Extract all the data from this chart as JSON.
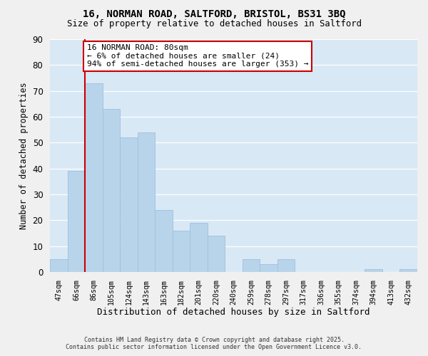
{
  "title_line1": "16, NORMAN ROAD, SALTFORD, BRISTOL, BS31 3BQ",
  "title_line2": "Size of property relative to detached houses in Saltford",
  "xlabel": "Distribution of detached houses by size in Saltford",
  "ylabel": "Number of detached properties",
  "bar_labels": [
    "47sqm",
    "66sqm",
    "86sqm",
    "105sqm",
    "124sqm",
    "143sqm",
    "163sqm",
    "182sqm",
    "201sqm",
    "220sqm",
    "240sqm",
    "259sqm",
    "278sqm",
    "297sqm",
    "317sqm",
    "336sqm",
    "355sqm",
    "374sqm",
    "394sqm",
    "413sqm",
    "432sqm"
  ],
  "bar_heights": [
    5,
    39,
    73,
    63,
    52,
    54,
    24,
    16,
    19,
    14,
    0,
    5,
    3,
    5,
    0,
    0,
    0,
    0,
    1,
    0,
    1
  ],
  "bar_color": "#b8d4ea",
  "bar_edge_color": "#a0c0de",
  "vline_color": "#cc0000",
  "vline_x_index": 1.5,
  "ylim": [
    0,
    90
  ],
  "yticks": [
    0,
    10,
    20,
    30,
    40,
    50,
    60,
    70,
    80,
    90
  ],
  "grid_color": "#d0e4f4",
  "bg_color": "#d8e8f5",
  "fig_bg_color": "#f0f0f0",
  "annotation_text": "16 NORMAN ROAD: 80sqm\n← 6% of detached houses are smaller (24)\n94% of semi-detached houses are larger (353) →",
  "annotation_box_facecolor": "#ffffff",
  "annotation_box_edgecolor": "#cc0000",
  "footer_line1": "Contains HM Land Registry data © Crown copyright and database right 2025.",
  "footer_line2": "Contains public sector information licensed under the Open Government Licence v3.0."
}
